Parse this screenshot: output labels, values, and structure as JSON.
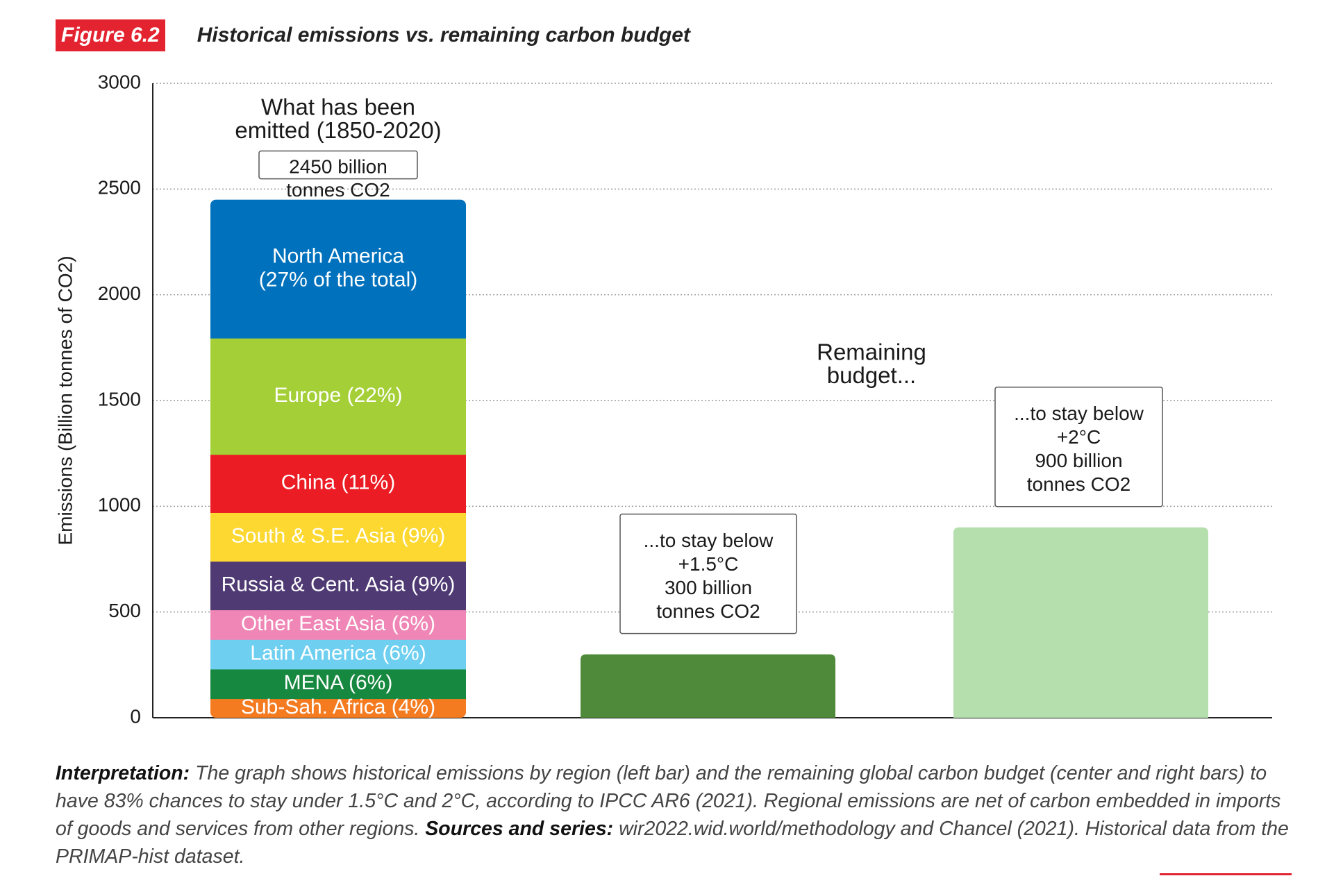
{
  "figure": {
    "badge": "Figure 6.2",
    "title": "Historical emissions vs. remaining carbon budget"
  },
  "colors": {
    "badge": "#e3232f",
    "grid": "#9a9a9a",
    "box_border": "#555555"
  },
  "chart_data": {
    "type": "bar",
    "stacked": true,
    "title": "Historical emissions vs. remaining carbon budget",
    "ylabel": "Emissions (Billion tonnes of CO2)",
    "xlabel": "",
    "ylim": [
      0,
      3000
    ],
    "yticks": [
      0,
      500,
      1000,
      1500,
      2000,
      2500,
      3000
    ],
    "grid": true,
    "historical": {
      "heading_line1": "What has been",
      "heading_line2": "emitted (1850-2020)",
      "total_line1": "2450 billion",
      "total_line2": "tonnes CO2",
      "total": 2450,
      "segments": [
        {
          "name": "Sub-Sah. Africa",
          "label": "Sub-Sah. Africa (4%)",
          "value": 90,
          "color": "#f47b20"
        },
        {
          "name": "MENA",
          "label": "MENA (6%)",
          "value": 140,
          "color": "#16883f"
        },
        {
          "name": "Latin America",
          "label": "Latin America (6%)",
          "value": 140,
          "color": "#6fcff0"
        },
        {
          "name": "Other East Asia",
          "label": "Other East Asia (6%)",
          "value": 140,
          "color": "#ef86b6"
        },
        {
          "name": "Russia & Cent. Asia",
          "label": "Russia & Cent. Asia (9%)",
          "value": 230,
          "color": "#4f3a74"
        },
        {
          "name": "South & S.E. Asia",
          "label": "South & S.E. Asia (9%)",
          "value": 230,
          "color": "#fdd831"
        },
        {
          "name": "China",
          "label": "China (11%)",
          "value": 275,
          "color": "#ec1c24"
        },
        {
          "name": "Europe",
          "label": "Europe (22%)",
          "value": 550,
          "color": "#a4cf37"
        },
        {
          "name": "North America",
          "label_line1": "North America",
          "label_line2": "(27% of the total)",
          "value": 655,
          "color": "#0071bc"
        }
      ]
    },
    "remaining_heading_line1": "Remaining",
    "remaining_heading_line2": "budget...",
    "budget_bars": [
      {
        "name": "1.5C budget",
        "value": 300,
        "color": "#4e8a3a",
        "box_lines": [
          "...to stay below",
          "+1.5°C",
          "300 billion",
          "tonnes CO2"
        ]
      },
      {
        "name": "2C budget",
        "value": 900,
        "color": "#b6dfae",
        "box_lines": [
          "...to stay below",
          "+2°C",
          "900 billion",
          "tonnes CO2"
        ]
      }
    ]
  },
  "caption": {
    "interp_label": "Interpretation:",
    "interp_text": " The graph shows historical emissions by region (left bar) and the remaining global carbon budget (center and right bars) to have 83% chances to stay under 1.5°C and 2°C, according to IPCC AR6 (2021). Regional emissions are net of carbon embedded in imports of goods and services from other regions. ",
    "sources_label": "Sources and series:",
    "sources_text": " wir2022.wid.world/methodology and Chancel (2021). Historical data from the PRIMAP-hist dataset."
  }
}
